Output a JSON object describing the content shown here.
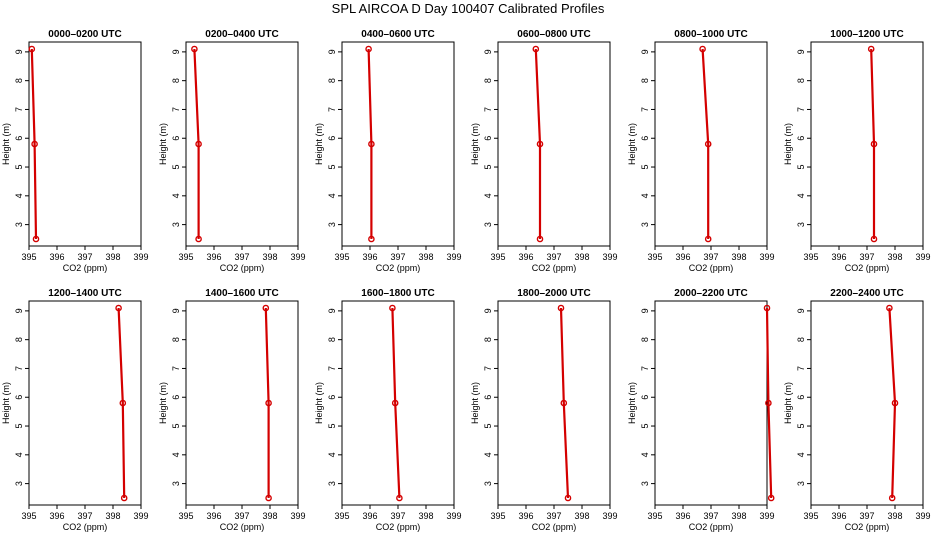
{
  "figure_title": "SPL AIRCOA D  Day 100407  Calibrated Profiles",
  "colors": {
    "profile": "#d40000",
    "frame": "#000000",
    "background": "#ffffff"
  },
  "chart_data": [
    {
      "type": "line",
      "title": "0000–0200 UTC",
      "xlabel": "CO2 (ppm)",
      "ylabel": "Height (m)",
      "xlim": [
        395,
        399
      ],
      "ylim": [
        2.5,
        9.1
      ],
      "x_ticks": [
        395,
        396,
        397,
        398,
        399
      ],
      "y_ticks": [
        3,
        4,
        5,
        6,
        7,
        8,
        9
      ],
      "x": [
        395.1,
        395.2,
        395.25
      ],
      "y": [
        9.1,
        5.8,
        2.5
      ]
    },
    {
      "type": "line",
      "title": "0200–0400 UTC",
      "xlabel": "CO2 (ppm)",
      "ylabel": "Height (m)",
      "xlim": [
        395,
        399
      ],
      "ylim": [
        2.5,
        9.1
      ],
      "x_ticks": [
        395,
        396,
        397,
        398,
        399
      ],
      "y_ticks": [
        3,
        4,
        5,
        6,
        7,
        8,
        9
      ],
      "x": [
        395.3,
        395.45,
        395.45
      ],
      "y": [
        9.1,
        5.8,
        2.5
      ]
    },
    {
      "type": "line",
      "title": "0400–0600 UTC",
      "xlabel": "CO2 (ppm)",
      "ylabel": "Height (m)",
      "xlim": [
        395,
        399
      ],
      "ylim": [
        2.5,
        9.1
      ],
      "x_ticks": [
        395,
        396,
        397,
        398,
        399
      ],
      "y_ticks": [
        3,
        4,
        5,
        6,
        7,
        8,
        9
      ],
      "x": [
        395.95,
        396.05,
        396.05
      ],
      "y": [
        9.1,
        5.8,
        2.5
      ]
    },
    {
      "type": "line",
      "title": "0600–0800 UTC",
      "xlabel": "CO2 (ppm)",
      "ylabel": "Height (m)",
      "xlim": [
        395,
        399
      ],
      "ylim": [
        2.5,
        9.1
      ],
      "x_ticks": [
        395,
        396,
        397,
        398,
        399
      ],
      "y_ticks": [
        3,
        4,
        5,
        6,
        7,
        8,
        9
      ],
      "x": [
        396.35,
        396.5,
        396.5
      ],
      "y": [
        9.1,
        5.8,
        2.5
      ]
    },
    {
      "type": "line",
      "title": "0800–1000 UTC",
      "xlabel": "CO2 (ppm)",
      "ylabel": "Height (m)",
      "xlim": [
        395,
        399
      ],
      "ylim": [
        2.5,
        9.1
      ],
      "x_ticks": [
        395,
        396,
        397,
        398,
        399
      ],
      "y_ticks": [
        3,
        4,
        5,
        6,
        7,
        8,
        9
      ],
      "x": [
        396.7,
        396.9,
        396.9
      ],
      "y": [
        9.1,
        5.8,
        2.5
      ]
    },
    {
      "type": "line",
      "title": "1000–1200 UTC",
      "xlabel": "CO2 (ppm)",
      "ylabel": "Height (m)",
      "xlim": [
        395,
        399
      ],
      "ylim": [
        2.5,
        9.1
      ],
      "x_ticks": [
        395,
        396,
        397,
        398,
        399
      ],
      "y_ticks": [
        3,
        4,
        5,
        6,
        7,
        8,
        9
      ],
      "x": [
        397.15,
        397.25,
        397.25
      ],
      "y": [
        9.1,
        5.8,
        2.5
      ]
    },
    {
      "type": "line",
      "title": "1200–1400 UTC",
      "xlabel": "CO2 (ppm)",
      "ylabel": "Height (m)",
      "xlim": [
        395,
        399
      ],
      "ylim": [
        2.5,
        9.1
      ],
      "x_ticks": [
        395,
        396,
        397,
        398,
        399
      ],
      "y_ticks": [
        3,
        4,
        5,
        6,
        7,
        8,
        9
      ],
      "x": [
        398.2,
        398.35,
        398.4
      ],
      "y": [
        9.1,
        5.8,
        2.5
      ]
    },
    {
      "type": "line",
      "title": "1400–1600 UTC",
      "xlabel": "CO2 (ppm)",
      "ylabel": "Height (m)",
      "xlim": [
        395,
        399
      ],
      "ylim": [
        2.5,
        9.1
      ],
      "x_ticks": [
        395,
        396,
        397,
        398,
        399
      ],
      "y_ticks": [
        3,
        4,
        5,
        6,
        7,
        8,
        9
      ],
      "x": [
        397.85,
        397.95,
        397.95
      ],
      "y": [
        9.1,
        5.8,
        2.5
      ]
    },
    {
      "type": "line",
      "title": "1600–1800 UTC",
      "xlabel": "CO2 (ppm)",
      "ylabel": "Height (m)",
      "xlim": [
        395,
        399
      ],
      "ylim": [
        2.5,
        9.1
      ],
      "x_ticks": [
        395,
        396,
        397,
        398,
        399
      ],
      "y_ticks": [
        3,
        4,
        5,
        6,
        7,
        8,
        9
      ],
      "x": [
        396.8,
        396.9,
        397.05
      ],
      "y": [
        9.1,
        5.8,
        2.5
      ]
    },
    {
      "type": "line",
      "title": "1800–2000 UTC",
      "xlabel": "CO2 (ppm)",
      "ylabel": "Height (m)",
      "xlim": [
        395,
        399
      ],
      "ylim": [
        2.5,
        9.1
      ],
      "x_ticks": [
        395,
        396,
        397,
        398,
        399
      ],
      "y_ticks": [
        3,
        4,
        5,
        6,
        7,
        8,
        9
      ],
      "x": [
        397.25,
        397.35,
        397.5
      ],
      "y": [
        9.1,
        5.8,
        2.5
      ]
    },
    {
      "type": "line",
      "title": "2000–2200 UTC",
      "xlabel": "CO2 (ppm)",
      "ylabel": "Height (m)",
      "xlim": [
        395,
        399
      ],
      "ylim": [
        2.5,
        9.1
      ],
      "x_ticks": [
        395,
        396,
        397,
        398,
        399
      ],
      "y_ticks": [
        3,
        4,
        5,
        6,
        7,
        8,
        9
      ],
      "x": [
        399.0,
        399.05,
        399.15
      ],
      "y": [
        9.1,
        5.8,
        2.5
      ]
    },
    {
      "type": "line",
      "title": "2200–2400 UTC",
      "xlabel": "CO2 (ppm)",
      "ylabel": "Height (m)",
      "xlim": [
        395,
        399
      ],
      "ylim": [
        2.5,
        9.1
      ],
      "x_ticks": [
        395,
        396,
        397,
        398,
        399
      ],
      "y_ticks": [
        3,
        4,
        5,
        6,
        7,
        8,
        9
      ],
      "x": [
        397.8,
        398.0,
        397.9
      ],
      "y": [
        9.1,
        5.8,
        2.5
      ]
    }
  ]
}
